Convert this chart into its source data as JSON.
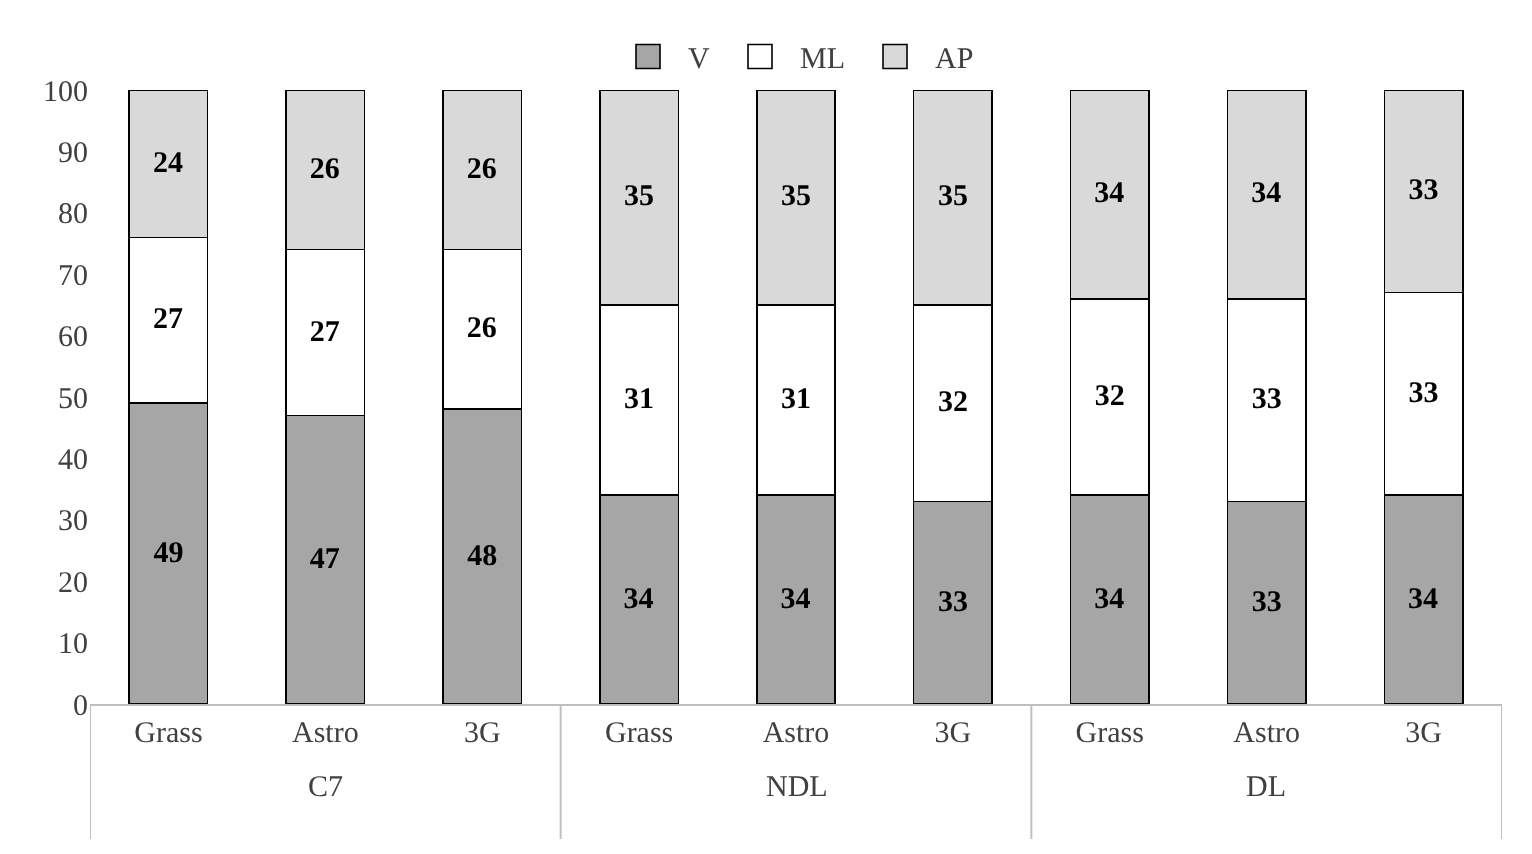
{
  "chart_data": {
    "type": "bar",
    "stacked": true,
    "data_labels": true,
    "legend": "top",
    "categories": [
      "Grass",
      "Astro",
      "3G",
      "Grass",
      "Astro",
      "3G",
      "Grass",
      "Astro",
      "3G"
    ],
    "annotations": [
      "C7",
      "NDL",
      "DL"
    ],
    "series": [
      {
        "name": "V",
        "color": "#a6a6a6",
        "values": [
          49,
          47,
          48,
          34,
          34,
          33,
          34,
          33,
          34
        ]
      },
      {
        "name": "ML",
        "color": "#ffffff",
        "values": [
          27,
          27,
          26,
          31,
          31,
          32,
          32,
          33,
          33
        ]
      },
      {
        "name": "AP",
        "color": "#d9d9d9",
        "values": [
          24,
          26,
          26,
          35,
          35,
          35,
          34,
          34,
          33
        ]
      }
    ],
    "ylim": [
      0,
      100
    ],
    "yticks": [
      0,
      10,
      20,
      30,
      40,
      50,
      60,
      70,
      80,
      90,
      100
    ]
  }
}
